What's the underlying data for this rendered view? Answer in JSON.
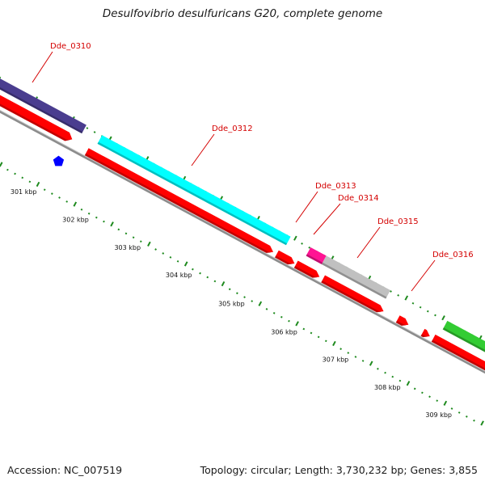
{
  "title": "Desulfovibrio desulfuricans G20, complete genome",
  "footer": {
    "accession": "Accession: NC_007519",
    "summary": "Topology: circular; Length: 3,730,232 bp; Genes: 3,855"
  },
  "colors": {
    "cds": "#ff0000",
    "backbone": "#8c8c8c",
    "tick": "#1e8a1e",
    "label": "#d40000"
  },
  "kbp_labels": [
    "301 kbp",
    "302 kbp",
    "303 kbp",
    "304 kbp",
    "305 kbp",
    "306 kbp",
    "307 kbp",
    "308 kbp",
    "309 kbp"
  ],
  "gene_labels": [
    "Dde_0310",
    "Dde_0312",
    "Dde_0313",
    "Dde_0314",
    "Dde_0315",
    "Dde_0316"
  ],
  "features": [
    {
      "id": "dde0310-cog",
      "color": "#4a3d8f"
    },
    {
      "id": "dde0312-cog",
      "color": "#00ffff"
    },
    {
      "id": "dde0313-cog",
      "color": "#ff1493"
    },
    {
      "id": "dde0315-cog",
      "color": "#c0c0c0"
    },
    {
      "id": "dde0316-cog",
      "color": "#33cc33"
    },
    {
      "id": "small-marker",
      "color": "#0000ff"
    }
  ]
}
